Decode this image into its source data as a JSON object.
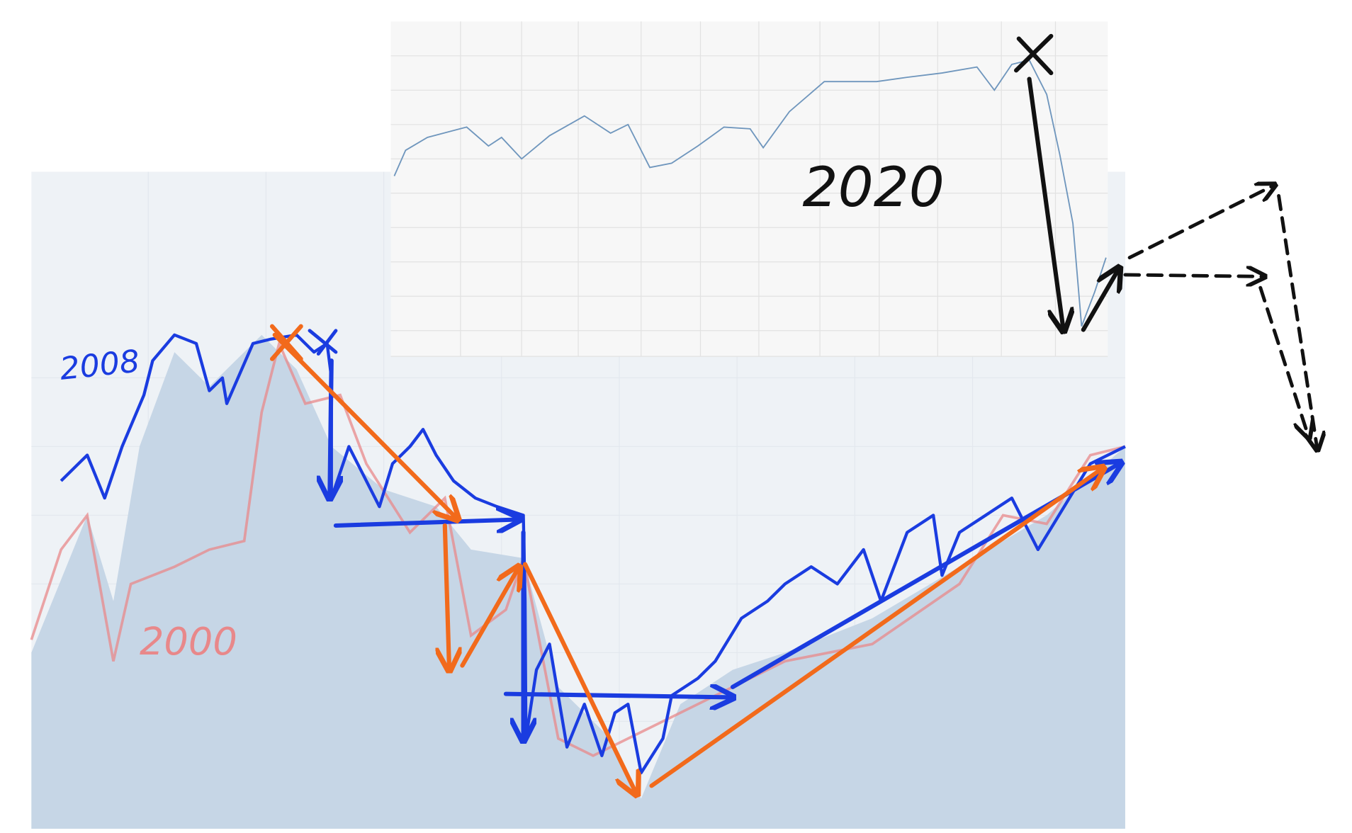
{
  "annotations": {
    "labels": [
      "2008",
      "2000",
      "2020"
    ]
  }
}
